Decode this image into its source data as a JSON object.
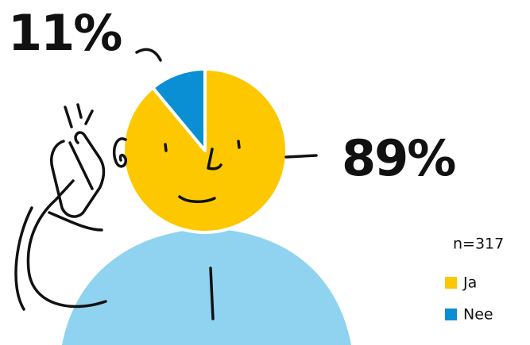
{
  "chart_data": {
    "type": "pie",
    "categories": [
      "Ja",
      "Nee"
    ],
    "values": [
      89,
      11
    ],
    "value_labels": [
      "89%",
      "11%"
    ],
    "colors": [
      "#fdc800",
      "#0a8fd4"
    ],
    "annotation": "n=317"
  }
}
